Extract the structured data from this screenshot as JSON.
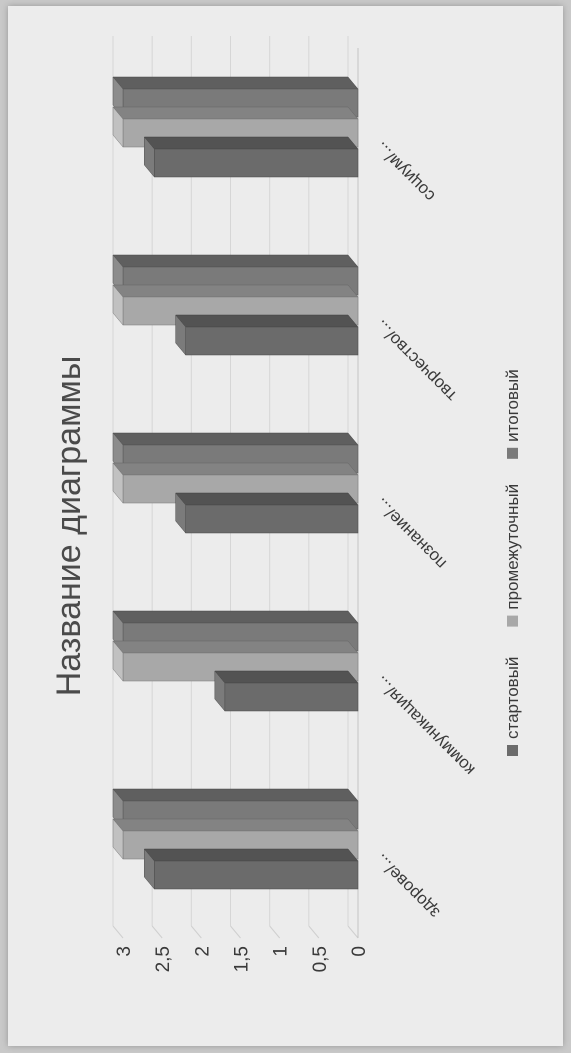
{
  "chart_data": {
    "type": "bar",
    "title": "Название диаграммы",
    "xlabel": "",
    "ylabel": "",
    "categories": [
      "здорове/...",
      "коммуникация/...",
      "познание/...",
      "творчество/...",
      "социум/..."
    ],
    "ylim": [
      0,
      3
    ],
    "yticks": [
      "0",
      "0,5",
      "1",
      "1,5",
      "2",
      "2,5",
      "3"
    ],
    "legend_position": "bottom",
    "grid": true,
    "series": [
      {
        "name": "стартовый",
        "color": "#6b6b6b",
        "values": [
          2.6,
          1.7,
          2.2,
          2.2,
          2.6
        ]
      },
      {
        "name": "промежуточный",
        "color": "#a8a8a8",
        "values": [
          3.0,
          3.0,
          3.0,
          3.0,
          3.0
        ]
      },
      {
        "name": "итоговый",
        "color": "#7a7a7a",
        "values": [
          3.0,
          3.0,
          3.0,
          3.0,
          3.0
        ]
      }
    ]
  }
}
